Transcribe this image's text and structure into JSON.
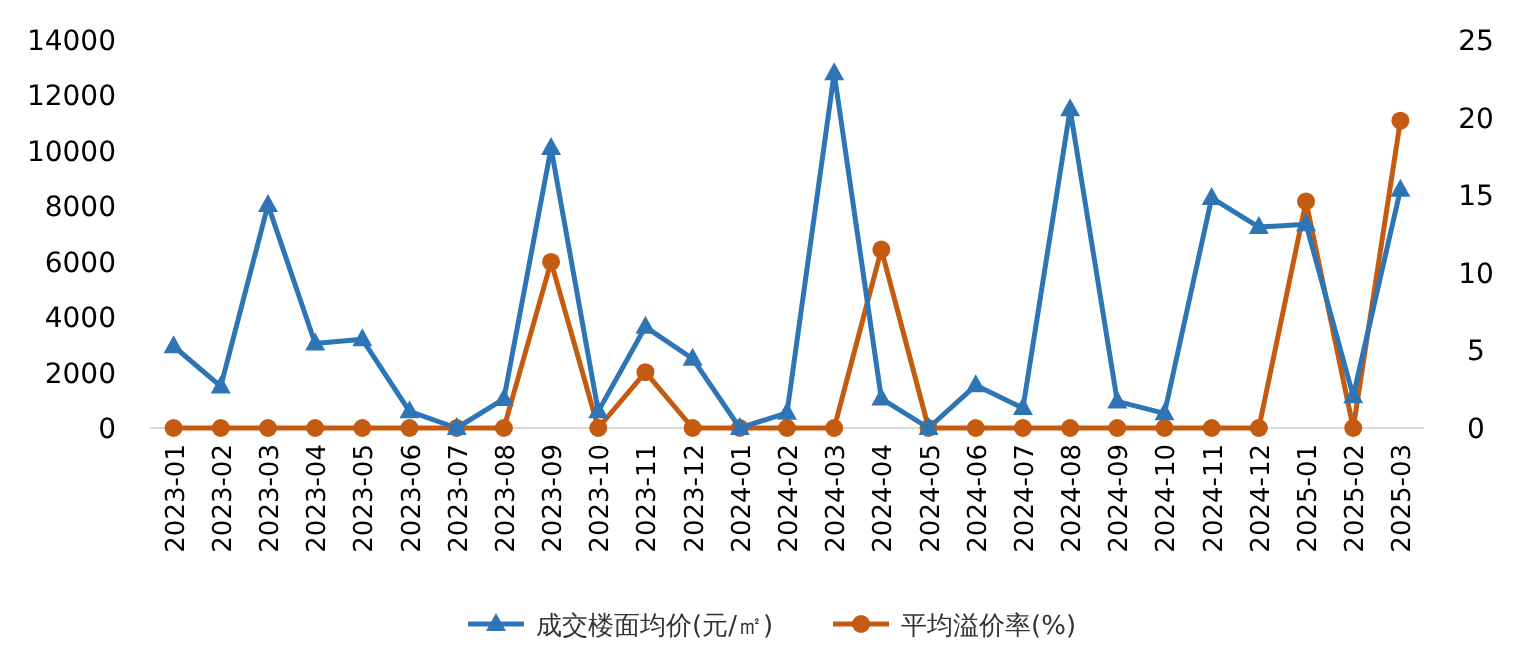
{
  "chart_data": {
    "type": "line",
    "categories": [
      "2023-01",
      "2023-02",
      "2023-03",
      "2023-04",
      "2023-05",
      "2023-06",
      "2023-07",
      "2023-08",
      "2023-09",
      "2023-10",
      "2023-11",
      "2023-12",
      "2024-01",
      "2024-02",
      "2024-03",
      "2024-04",
      "2024-05",
      "2024-06",
      "2024-07",
      "2024-08",
      "2024-09",
      "2024-10",
      "2024-11",
      "2024-12",
      "2025-01",
      "2025-02",
      "2025-03"
    ],
    "series": [
      {
        "name": "成交楼面均价(元/㎡)",
        "color": "#2e75b6",
        "marker": "triangle",
        "values": [
          2950,
          1500,
          8050,
          3050,
          3200,
          600,
          0,
          1050,
          10100,
          600,
          3650,
          2500,
          0,
          550,
          12800,
          1060,
          0,
          1540,
          720,
          11500,
          960,
          530,
          8300,
          7250,
          7350,
          1150,
          8600
        ]
      },
      {
        "name": "平均溢价率(%)",
        "color": "#c55a11",
        "marker": "circle",
        "axis": "y2",
        "values": [
          0,
          0,
          0,
          0,
          0,
          0,
          0,
          0,
          10.7,
          0,
          3.6,
          0,
          0,
          0,
          0,
          11.5,
          0,
          0,
          0,
          0,
          0,
          0,
          0,
          0,
          14.6,
          0,
          19.8
        ]
      }
    ],
    "ylim": [
      0,
      14000
    ],
    "yticks": [
      0,
      2000,
      4000,
      6000,
      8000,
      10000,
      12000,
      14000
    ],
    "y2lim": [
      0,
      25
    ],
    "y2ticks": [
      0,
      5,
      10,
      15,
      20,
      25
    ],
    "grid": false,
    "legend": "bottom",
    "line_style": "solid"
  }
}
